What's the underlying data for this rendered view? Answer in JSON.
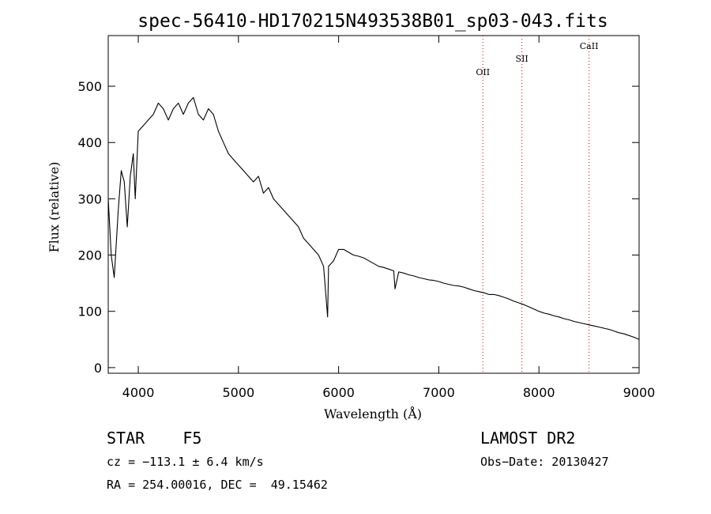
{
  "chart_data": {
    "type": "line",
    "title": "spec-56410-HD170215N493538B01_sp03-043.fits",
    "xlabel": "Wavelength (Å)",
    "ylabel": "Flux (relative)",
    "xlim": [
      3700,
      9000
    ],
    "ylim": [
      -10,
      590
    ],
    "x_ticks": [
      4000,
      5000,
      6000,
      7000,
      8000,
      9000
    ],
    "y_ticks": [
      0,
      100,
      200,
      300,
      400,
      500
    ],
    "grid": false,
    "series": [
      {
        "x": [
          3700,
          3730,
          3760,
          3800,
          3830,
          3860,
          3890,
          3920,
          3950,
          3970,
          4000,
          4050,
          4100,
          4150,
          4200,
          4250,
          4300,
          4350,
          4400,
          4450,
          4500,
          4550,
          4600,
          4650,
          4700,
          4750,
          4800,
          4850,
          4900,
          4950,
          5000,
          5050,
          5100,
          5150,
          5200,
          5250,
          5300,
          5350,
          5400,
          5450,
          5500,
          5550,
          5600,
          5650,
          5700,
          5750,
          5800,
          5850,
          5890,
          5900,
          5950,
          6000,
          6050,
          6100,
          6150,
          6200,
          6250,
          6300,
          6350,
          6400,
          6450,
          6500,
          6550,
          6563,
          6600,
          6650,
          6700,
          6750,
          6800,
          6850,
          6900,
          6950,
          7000,
          7050,
          7100,
          7150,
          7200,
          7250,
          7300,
          7350,
          7400,
          7450,
          7500,
          7550,
          7600,
          7650,
          7700,
          7750,
          7800,
          7850,
          7900,
          7950,
          8000,
          8050,
          8100,
          8150,
          8200,
          8250,
          8300,
          8350,
          8400,
          8450,
          8500,
          8550,
          8600,
          8650,
          8700,
          8750,
          8800,
          8850,
          8900,
          8950,
          9000
        ],
        "y": [
          300,
          200,
          160,
          280,
          350,
          330,
          250,
          340,
          380,
          300,
          420,
          430,
          440,
          450,
          470,
          460,
          440,
          460,
          470,
          450,
          470,
          480,
          450,
          440,
          460,
          450,
          420,
          400,
          380,
          370,
          360,
          350,
          340,
          330,
          340,
          310,
          320,
          300,
          290,
          280,
          270,
          260,
          250,
          230,
          220,
          210,
          200,
          180,
          90,
          180,
          190,
          210,
          210,
          205,
          200,
          198,
          195,
          190,
          185,
          180,
          178,
          175,
          172,
          140,
          170,
          168,
          165,
          163,
          160,
          158,
          156,
          155,
          153,
          150,
          148,
          146,
          145,
          143,
          140,
          137,
          135,
          133,
          130,
          130,
          128,
          125,
          122,
          118,
          115,
          112,
          108,
          104,
          100,
          97,
          95,
          92,
          90,
          87,
          85,
          82,
          80,
          78,
          76,
          74,
          72,
          70,
          68,
          65,
          62,
          60,
          57,
          54,
          50
        ]
      }
    ],
    "line_markers": [
      {
        "label": "OII",
        "x": 7440
      },
      {
        "label": "SII",
        "x": 7830
      },
      {
        "label": "CaII",
        "x": 8500
      }
    ],
    "marker_color": "#cc0000"
  },
  "info": {
    "object": "STAR    F5",
    "survey": "LAMOST DR2",
    "cz": "cz = −113.1 ± 6.4 km/s",
    "obs_date": "Obs−Date: 20130427",
    "coords": "RA = 254.00016, DEC =  49.15462"
  }
}
